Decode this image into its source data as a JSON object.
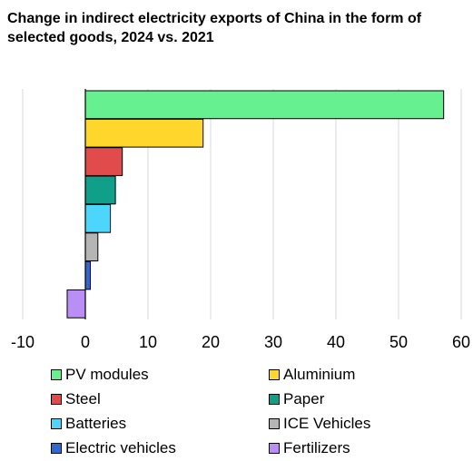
{
  "chart_data": {
    "type": "bar",
    "orientation": "horizontal",
    "title": "Change in indirect electricity exports of China in the form of selected goods, 2024 vs. 2021",
    "categories": [
      "PV modules",
      "Aluminium",
      "Steel",
      "Paper",
      "Batteries",
      "ICE Vehicles",
      "Electric vehicles",
      "Fertilizers"
    ],
    "values": [
      57.2,
      18.8,
      5.9,
      4.8,
      4.0,
      2.0,
      0.8,
      -2.9
    ],
    "colors": [
      "#66f08f",
      "#ffd62b",
      "#e24b4b",
      "#10a08a",
      "#4dd6fc",
      "#b5b5b5",
      "#2f6ad0",
      "#b98ef5"
    ],
    "xlim": [
      -10,
      60
    ],
    "xticks": [
      "-10",
      "0",
      "10",
      "20",
      "30",
      "40",
      "50",
      "60"
    ],
    "grid": "vertical",
    "legend_position": "bottom"
  }
}
